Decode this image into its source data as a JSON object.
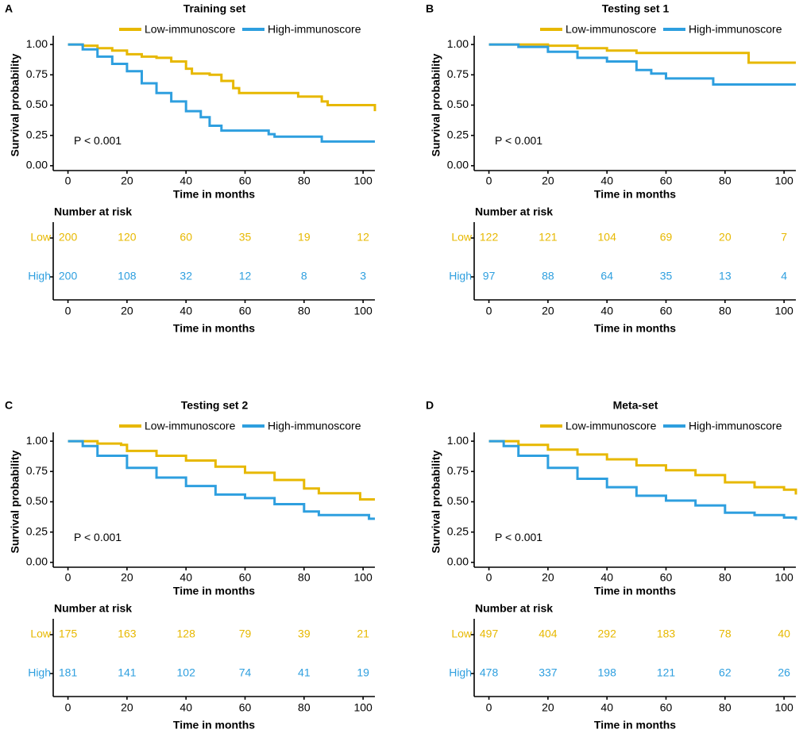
{
  "chart_data": [
    {
      "type": "line",
      "panel_label": "A",
      "title": "Training set",
      "xlabel": "Time in months",
      "ylabel": "Survival probability",
      "xlim": [
        -5,
        104
      ],
      "xticks": [
        0,
        20,
        40,
        60,
        80,
        100
      ],
      "ylim": [
        -0.04,
        1.04
      ],
      "yticks": [
        {
          "value": 0,
          "label": "0.00"
        },
        {
          "value": 0.25,
          "label": "0.25"
        },
        {
          "value": 0.5,
          "label": "0.50"
        },
        {
          "value": 0.75,
          "label": "0.75"
        },
        {
          "value": 1,
          "label": "1.00"
        }
      ],
      "annotation": "P < 0.001",
      "series": [
        {
          "name": "Low-immunoscore",
          "color": "#E7B800",
          "x": [
            0,
            5,
            10,
            15,
            20,
            25,
            30,
            35,
            40,
            42,
            48,
            52,
            56,
            58,
            75,
            78,
            85,
            86,
            88,
            100,
            104
          ],
          "values": [
            1,
            0.99,
            0.97,
            0.95,
            0.92,
            0.9,
            0.89,
            0.86,
            0.8,
            0.76,
            0.75,
            0.7,
            0.64,
            0.6,
            0.6,
            0.57,
            0.57,
            0.53,
            0.5,
            0.5,
            0.45
          ]
        },
        {
          "name": "High-immunoscore",
          "color": "#2E9FDF",
          "x": [
            0,
            5,
            10,
            15,
            20,
            25,
            30,
            35,
            40,
            45,
            48,
            52,
            60,
            68,
            70,
            85,
            86,
            104
          ],
          "values": [
            1,
            0.96,
            0.9,
            0.84,
            0.78,
            0.68,
            0.6,
            0.53,
            0.45,
            0.4,
            0.33,
            0.29,
            0.29,
            0.26,
            0.24,
            0.24,
            0.2,
            0.2
          ]
        }
      ],
      "risk_table": {
        "title": "Number at risk",
        "xlabel": "Time in months",
        "xticks": [
          0,
          20,
          40,
          60,
          80,
          100
        ],
        "rows": [
          {
            "name": "Low",
            "color": "#E7B800",
            "values": [
              200,
              120,
              60,
              35,
              19,
              12
            ]
          },
          {
            "name": "High",
            "color": "#2E9FDF",
            "values": [
              200,
              108,
              32,
              12,
              8,
              3
            ]
          }
        ]
      }
    },
    {
      "type": "line",
      "panel_label": "B",
      "title": "Testing set 1",
      "xlabel": "Time in months",
      "ylabel": "Survival probability",
      "xlim": [
        -5,
        104
      ],
      "xticks": [
        0,
        20,
        40,
        60,
        80,
        100
      ],
      "ylim": [
        -0.04,
        1.04
      ],
      "yticks": [
        {
          "value": 0,
          "label": "0.00"
        },
        {
          "value": 0.25,
          "label": "0.25"
        },
        {
          "value": 0.5,
          "label": "0.50"
        },
        {
          "value": 0.75,
          "label": "0.75"
        },
        {
          "value": 1,
          "label": "1.00"
        }
      ],
      "annotation": "P < 0.001",
      "series": [
        {
          "name": "Low-immunoscore",
          "color": "#E7B800",
          "x": [
            0,
            20,
            30,
            40,
            50,
            87,
            88,
            104
          ],
          "values": [
            1,
            0.99,
            0.97,
            0.95,
            0.93,
            0.93,
            0.85,
            0.85
          ]
        },
        {
          "name": "High-immunoscore",
          "color": "#2E9FDF",
          "x": [
            0,
            10,
            20,
            30,
            40,
            50,
            55,
            60,
            75,
            76,
            104
          ],
          "values": [
            1,
            0.98,
            0.94,
            0.89,
            0.86,
            0.79,
            0.76,
            0.72,
            0.72,
            0.67,
            0.67
          ]
        }
      ],
      "risk_table": {
        "title": "Number at risk",
        "xlabel": "Time in months",
        "xticks": [
          0,
          20,
          40,
          60,
          80,
          100
        ],
        "rows": [
          {
            "name": "Low",
            "color": "#E7B800",
            "values": [
              122,
              121,
              104,
              69,
              20,
              7
            ]
          },
          {
            "name": "High",
            "color": "#2E9FDF",
            "values": [
              97,
              88,
              64,
              35,
              13,
              4
            ]
          }
        ]
      }
    },
    {
      "type": "line",
      "panel_label": "C",
      "title": "Testing set 2",
      "xlabel": "Time in months",
      "ylabel": "Survival probability",
      "xlim": [
        -5,
        104
      ],
      "xticks": [
        0,
        20,
        40,
        60,
        80,
        100
      ],
      "ylim": [
        -0.04,
        1.04
      ],
      "yticks": [
        {
          "value": 0,
          "label": "0.00"
        },
        {
          "value": 0.25,
          "label": "0.25"
        },
        {
          "value": 0.5,
          "label": "0.50"
        },
        {
          "value": 0.75,
          "label": "0.75"
        },
        {
          "value": 1,
          "label": "1.00"
        }
      ],
      "annotation": "P < 0.001",
      "series": [
        {
          "name": "Low-immunoscore",
          "color": "#E7B800",
          "x": [
            0,
            10,
            18,
            20,
            30,
            40,
            50,
            60,
            70,
            80,
            85,
            98,
            99,
            104
          ],
          "values": [
            1,
            0.98,
            0.97,
            0.92,
            0.88,
            0.84,
            0.79,
            0.74,
            0.68,
            0.61,
            0.57,
            0.57,
            0.52,
            0.52
          ]
        },
        {
          "name": "High-immunoscore",
          "color": "#2E9FDF",
          "x": [
            0,
            5,
            10,
            20,
            30,
            40,
            50,
            60,
            70,
            80,
            85,
            100,
            102,
            104
          ],
          "values": [
            1,
            0.96,
            0.88,
            0.78,
            0.7,
            0.63,
            0.56,
            0.53,
            0.48,
            0.42,
            0.39,
            0.39,
            0.36,
            0.36
          ]
        }
      ],
      "risk_table": {
        "title": "Number at risk",
        "xlabel": "Time in months",
        "xticks": [
          0,
          20,
          40,
          60,
          80,
          100
        ],
        "rows": [
          {
            "name": "Low",
            "color": "#E7B800",
            "values": [
              175,
              163,
              128,
              79,
              39,
              21
            ]
          },
          {
            "name": "High",
            "color": "#2E9FDF",
            "values": [
              181,
              141,
              102,
              74,
              41,
              19
            ]
          }
        ]
      }
    },
    {
      "type": "line",
      "panel_label": "D",
      "title": "Meta-set",
      "xlabel": "Time in months",
      "ylabel": "Survival probability",
      "xlim": [
        -5,
        104
      ],
      "xticks": [
        0,
        20,
        40,
        60,
        80,
        100
      ],
      "ylim": [
        -0.04,
        1.04
      ],
      "yticks": [
        {
          "value": 0,
          "label": "0.00"
        },
        {
          "value": 0.25,
          "label": "0.25"
        },
        {
          "value": 0.5,
          "label": "0.50"
        },
        {
          "value": 0.75,
          "label": "0.75"
        },
        {
          "value": 1,
          "label": "1.00"
        }
      ],
      "annotation": "P < 0.001",
      "series": [
        {
          "name": "Low-immunoscore",
          "color": "#E7B800",
          "x": [
            0,
            10,
            20,
            30,
            40,
            50,
            60,
            70,
            80,
            90,
            100,
            104
          ],
          "values": [
            1,
            0.97,
            0.93,
            0.89,
            0.85,
            0.8,
            0.76,
            0.72,
            0.66,
            0.62,
            0.6,
            0.56
          ]
        },
        {
          "name": "High-immunoscore",
          "color": "#2E9FDF",
          "x": [
            0,
            5,
            10,
            20,
            30,
            40,
            50,
            60,
            70,
            80,
            90,
            100,
            104
          ],
          "values": [
            1,
            0.96,
            0.88,
            0.78,
            0.69,
            0.62,
            0.55,
            0.51,
            0.47,
            0.41,
            0.39,
            0.37,
            0.35
          ]
        }
      ],
      "risk_table": {
        "title": "Number at risk",
        "xlabel": "Time in months",
        "xticks": [
          0,
          20,
          40,
          60,
          80,
          100
        ],
        "rows": [
          {
            "name": "Low",
            "color": "#E7B800",
            "values": [
              497,
              404,
              292,
              183,
              78,
              40
            ]
          },
          {
            "name": "High",
            "color": "#2E9FDF",
            "values": [
              478,
              337,
              198,
              121,
              62,
              26
            ]
          }
        ]
      }
    }
  ]
}
